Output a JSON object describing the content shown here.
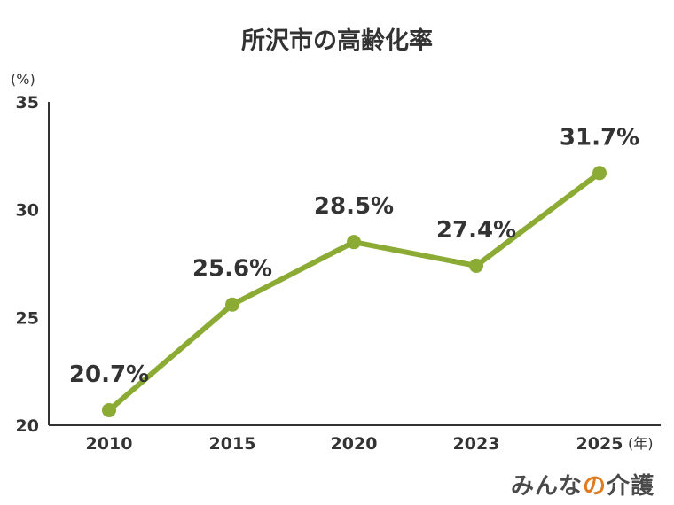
{
  "title": "所沢市の高齢化率",
  "logo": {
    "main": "みんな",
    "accent": "の",
    "tail": "介護"
  },
  "chart_data": {
    "type": "line",
    "title": "所沢市の高齢化率",
    "ylabel": "(%)",
    "xlabel": "(年)",
    "categories": [
      "2010",
      "2015",
      "2020",
      "2023",
      "2025"
    ],
    "series": [
      {
        "values": [
          20.7,
          25.6,
          28.5,
          27.4,
          31.7
        ]
      }
    ],
    "data_labels": [
      "20.7%",
      "25.6%",
      "28.5%",
      "27.4%",
      "31.7%"
    ],
    "ylim": [
      20,
      35
    ],
    "yticks": [
      20,
      25,
      30,
      35
    ],
    "grid": false,
    "colors": {
      "line": "#8bab34",
      "axis": "#333333"
    }
  }
}
